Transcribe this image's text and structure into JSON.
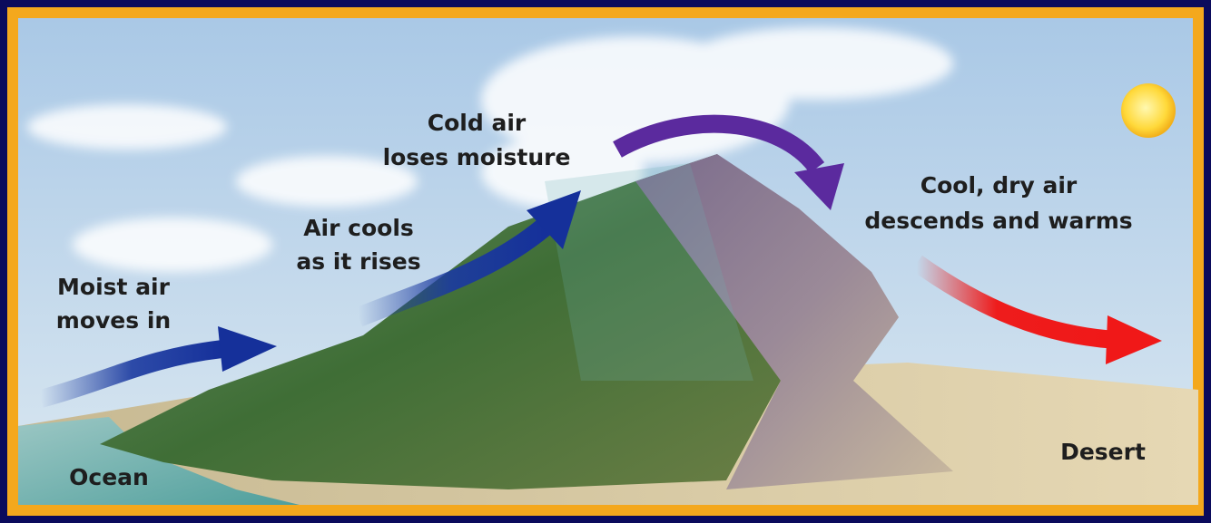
{
  "labels": [
    {
      "lines": [
        "Moist air",
        "moves in"
      ]
    },
    {
      "lines": [
        "Air cools",
        "as it rises"
      ]
    },
    {
      "lines": [
        "Cold air",
        "loses moisture"
      ]
    },
    {
      "lines": [
        "Cool, dry air",
        "descends and warms"
      ]
    },
    {
      "lines": [
        "Desert"
      ]
    },
    {
      "lines": [
        "Ocean"
      ]
    }
  ]
}
